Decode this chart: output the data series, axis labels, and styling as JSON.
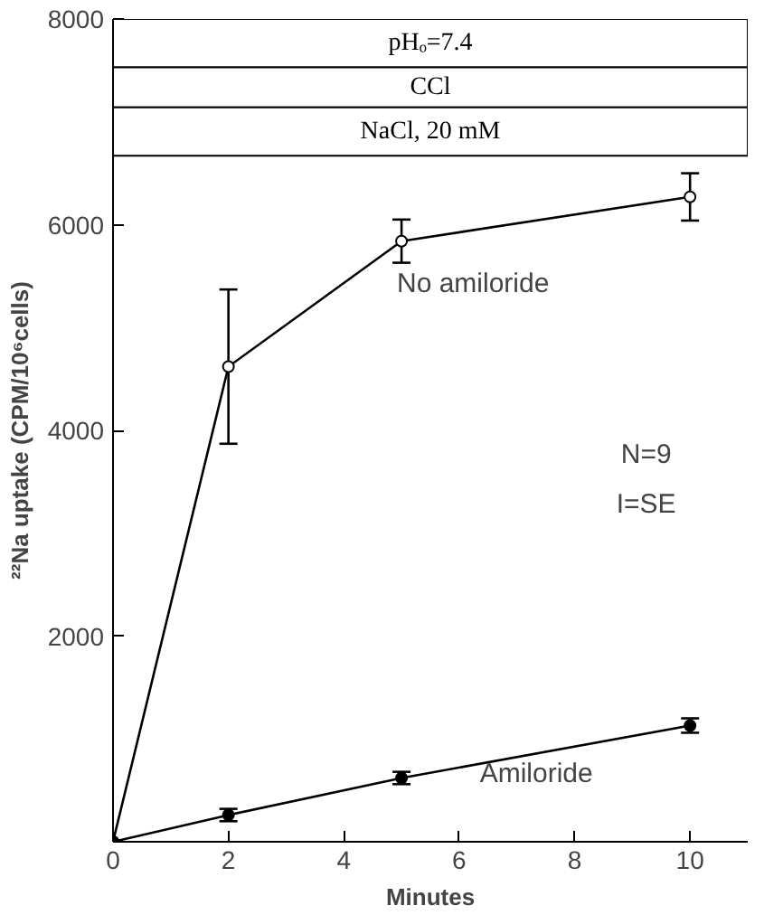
{
  "chart_data": {
    "type": "line",
    "xlabel": "Minutes",
    "ylabel": "²²Na uptake (CPM/10⁶cells)",
    "x": [
      0,
      2,
      5,
      10
    ],
    "series": [
      {
        "name": "No amiloride",
        "color": "#000000",
        "values": [
          0,
          4620,
          5840,
          6270
        ],
        "errors": [
          null,
          750,
          210,
          230
        ]
      },
      {
        "name": "Amiloride",
        "color": "#000000",
        "values": [
          0,
          260,
          620,
          1130
        ],
        "errors": [
          null,
          60,
          60,
          70
        ]
      }
    ],
    "xlim": [
      0,
      11
    ],
    "ylim": [
      0,
      8000
    ],
    "xticks": [
      0,
      2,
      4,
      6,
      8,
      10
    ],
    "yticks": [
      2000,
      4000,
      6000,
      8000
    ],
    "bands": [
      {
        "axis": "y",
        "from": 7530,
        "to": 8000,
        "label": "pHₒ=7.4",
        "color": "#ffffff"
      },
      {
        "axis": "y",
        "from": 7140,
        "to": 7530,
        "label": "CCl",
        "color": "#ffffff"
      },
      {
        "axis": "y",
        "from": 6670,
        "to": 7140,
        "label": "NaCl, 20 mM",
        "color": "#ffffff"
      }
    ],
    "annotations": [
      "N=9",
      "I=SE"
    ],
    "marker": "circle",
    "line_style": "solid",
    "grid": false
  }
}
